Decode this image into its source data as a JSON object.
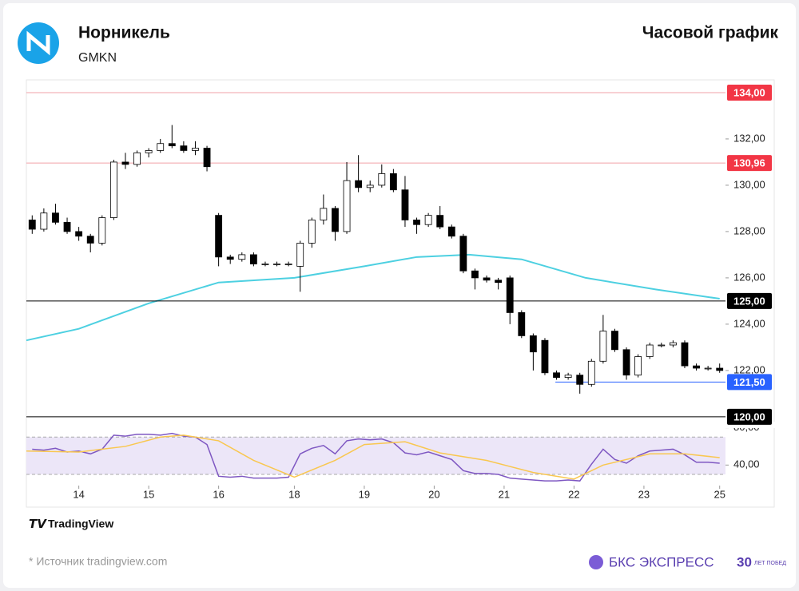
{
  "header": {
    "title": "Норникель",
    "ticker": "GMKN",
    "chart_kind": "Часовой график"
  },
  "footer": {
    "brand": "TradingView",
    "source": "* Источник tradingview.com",
    "company": "БКС ЭКСПРЕСС",
    "anniversary": "30",
    "anniversary_text": "ЛЕТ ПОБЕД"
  },
  "chart_data": {
    "type": "candlestick",
    "xlim": [
      -0.5,
      59.5
    ],
    "xticks": [
      {
        "value": 4,
        "label": "14"
      },
      {
        "value": 10,
        "label": "15"
      },
      {
        "value": 16,
        "label": "16"
      },
      {
        "value": 22.5,
        "label": "18"
      },
      {
        "value": 28.5,
        "label": "19"
      },
      {
        "value": 34.5,
        "label": "20"
      },
      {
        "value": 40.5,
        "label": "21"
      },
      {
        "value": 46.5,
        "label": "22"
      },
      {
        "value": 52.5,
        "label": "23"
      },
      {
        "value": 59,
        "label": "25"
      }
    ],
    "ylim": [
      119.72,
      134.55
    ],
    "yticks": [
      {
        "value": 122,
        "label": "122,00"
      },
      {
        "value": 124,
        "label": "124,00"
      },
      {
        "value": 126,
        "label": "126,00"
      },
      {
        "value": 128,
        "label": "128,00"
      },
      {
        "value": 130,
        "label": "130,00"
      },
      {
        "value": 132,
        "label": "132,00"
      }
    ],
    "candles": {
      "up_color": "#ffffff",
      "down_color": "#000000",
      "edge_color": "#000000",
      "x": [
        0,
        1,
        2,
        3,
        4,
        5,
        6,
        7,
        8,
        9,
        10,
        11,
        12,
        13,
        14,
        15,
        16,
        17,
        18,
        19,
        20,
        21,
        22,
        23,
        24,
        25,
        26,
        27,
        28,
        29,
        30,
        31,
        32,
        33,
        34,
        35,
        36,
        37,
        38,
        39,
        40,
        41,
        42,
        43,
        44,
        45,
        46,
        47,
        48,
        49,
        50,
        51,
        52,
        53,
        54,
        55,
        56,
        57,
        58,
        59
      ],
      "open": [
        128.5,
        128.1,
        128.8,
        128.4,
        128.0,
        127.8,
        127.5,
        128.6,
        131.0,
        130.9,
        131.4,
        131.5,
        131.8,
        131.7,
        131.5,
        131.6,
        128.7,
        126.9,
        126.8,
        127.0,
        126.6,
        126.6,
        126.6,
        126.5,
        127.5,
        128.5,
        129.0,
        128.0,
        130.2,
        129.9,
        130.0,
        130.5,
        129.8,
        128.5,
        128.3,
        128.7,
        128.2,
        127.8,
        126.3,
        126.0,
        125.9,
        126.0,
        124.5,
        123.5,
        123.3,
        121.9,
        121.7,
        121.8,
        121.4,
        122.4,
        123.7,
        122.9,
        121.8,
        122.6,
        123.1,
        123.1,
        123.2,
        122.2,
        122.1,
        122.1
      ],
      "high": [
        128.7,
        129.0,
        129.2,
        128.6,
        128.2,
        127.9,
        128.7,
        131.1,
        131.4,
        131.5,
        131.6,
        132.0,
        132.6,
        131.9,
        131.9,
        131.7,
        128.8,
        127.0,
        127.1,
        127.1,
        126.7,
        126.7,
        126.7,
        127.6,
        128.6,
        129.6,
        129.1,
        131.0,
        131.3,
        130.2,
        130.9,
        130.7,
        130.4,
        128.6,
        128.8,
        129.1,
        128.3,
        127.9,
        126.4,
        126.1,
        126.0,
        126.1,
        124.6,
        123.6,
        123.4,
        122.0,
        121.9,
        121.9,
        122.5,
        124.4,
        123.8,
        123.0,
        122.7,
        123.2,
        123.2,
        123.3,
        123.3,
        122.3,
        122.2,
        122.3
      ],
      "low": [
        127.9,
        128.0,
        128.3,
        127.9,
        127.6,
        127.1,
        127.4,
        128.5,
        130.7,
        130.8,
        131.2,
        131.4,
        131.6,
        131.4,
        131.3,
        130.6,
        126.5,
        126.6,
        126.7,
        126.5,
        126.5,
        126.5,
        126.5,
        125.4,
        127.3,
        128.3,
        127.6,
        127.9,
        129.7,
        129.7,
        129.9,
        129.7,
        128.2,
        127.9,
        128.2,
        128.1,
        127.7,
        126.2,
        125.5,
        125.8,
        125.5,
        124.0,
        123.4,
        122.0,
        121.8,
        121.6,
        121.6,
        121.0,
        121.3,
        122.3,
        122.8,
        121.6,
        121.7,
        122.5,
        123.0,
        123.0,
        122.1,
        122.0,
        122.0,
        121.9
      ],
      "close": [
        128.1,
        128.8,
        128.4,
        128.0,
        127.8,
        127.5,
        128.6,
        131.0,
        130.9,
        131.4,
        131.5,
        131.8,
        131.7,
        131.5,
        131.6,
        130.8,
        126.9,
        126.8,
        127.0,
        126.6,
        126.6,
        126.6,
        126.6,
        127.5,
        128.5,
        129.0,
        128.0,
        130.2,
        129.9,
        130.0,
        130.5,
        129.8,
        128.5,
        128.3,
        128.7,
        128.2,
        127.8,
        126.3,
        126.0,
        125.9,
        125.8,
        124.5,
        123.5,
        122.8,
        121.9,
        121.7,
        121.8,
        121.4,
        122.4,
        123.7,
        122.9,
        121.8,
        122.6,
        123.1,
        123.1,
        123.2,
        122.2,
        122.1,
        122.1,
        122.0
      ]
    },
    "ma": {
      "color": "#4dd0e1",
      "x": [
        -0.5,
        4,
        10,
        16,
        22.5,
        28.5,
        33,
        37.5,
        42,
        47.5,
        53.5,
        59
      ],
      "values": [
        123.3,
        123.8,
        124.9,
        125.8,
        126.0,
        126.5,
        126.9,
        127.0,
        126.8,
        126.0,
        125.5,
        125.1
      ]
    },
    "levels": [
      {
        "value": 134,
        "label": "134,00",
        "color": "#f23645",
        "line_color": "#f2a0a8"
      },
      {
        "value": 130.96,
        "label": "130,96",
        "color": "#f23645",
        "line_color": "#f2a0a8"
      },
      {
        "value": 125,
        "label": "125,00",
        "color": "#000000",
        "line_color": "#000000"
      },
      {
        "value": 121.5,
        "label": "121,50",
        "color": "#2962ff",
        "line_color": "#2962ff",
        "from": 44.9
      },
      {
        "value": 120,
        "label": "120,00",
        "color": "#000000",
        "line_color": "#000000"
      }
    ],
    "rsi": {
      "ylim": [
        18,
        80.5
      ],
      "yticks": [
        {
          "value": 40,
          "label": "40,00"
        },
        {
          "value": 80,
          "label": "80,00"
        }
      ],
      "band": [
        30,
        70
      ],
      "band_color": "#ece6f8",
      "series": [
        {
          "color": "#7e57c2",
          "x": [
            0,
            1,
            2,
            3,
            4,
            5,
            6,
            7,
            8,
            9,
            10,
            11,
            12,
            13,
            14,
            15,
            16,
            17,
            18,
            19,
            20,
            21,
            22,
            23,
            24,
            25,
            26,
            27,
            28,
            29,
            30,
            31,
            32,
            33,
            34,
            35,
            36,
            37,
            38,
            39,
            40,
            41,
            42,
            43,
            44,
            45,
            46,
            47,
            48,
            49,
            50,
            51,
            52,
            53,
            54,
            55,
            56,
            57,
            58,
            59
          ],
          "values": [
            57,
            56,
            58,
            54,
            55,
            52,
            57,
            72,
            71,
            73,
            73,
            72,
            74,
            71,
            70,
            62,
            28,
            27,
            28,
            26,
            26,
            26,
            27,
            52,
            58,
            61,
            52,
            66,
            68,
            67,
            68,
            64,
            53,
            51,
            54,
            50,
            46,
            34,
            31,
            31,
            30,
            26,
            25,
            24,
            23,
            23,
            24,
            23,
            41,
            57,
            46,
            42,
            50,
            55,
            56,
            57,
            51,
            43,
            43,
            42
          ]
        },
        {
          "color": "#f9c74f",
          "x": [
            -0.5,
            4,
            8,
            11,
            13,
            16,
            19,
            22.5,
            26,
            28.5,
            32,
            35,
            39,
            43,
            46.5,
            49,
            53,
            56,
            59
          ],
          "values": [
            55,
            54,
            60,
            70,
            72,
            66,
            45,
            27,
            45,
            62,
            65,
            53,
            45,
            32,
            25,
            40,
            52,
            52,
            48
          ]
        }
      ]
    }
  }
}
